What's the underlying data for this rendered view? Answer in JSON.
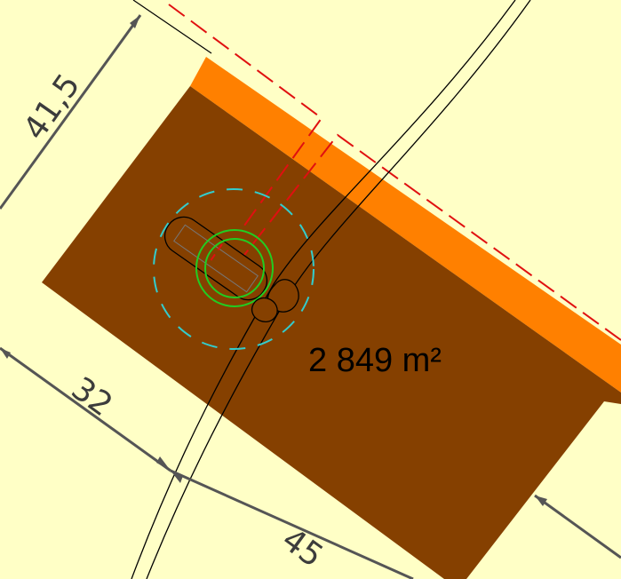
{
  "plot": {
    "area_label": "2 849 m²"
  },
  "dimensions": {
    "width_label": "41,5",
    "left_label": "32",
    "bottom_label": "45"
  },
  "colors": {
    "background": "#ffffc6",
    "plot_fill": "#854000",
    "border_strip": "#ff8000",
    "dimension_line": "#555555",
    "road_line": "#000000",
    "boundary_dashed": "#e01010",
    "turbine_ring": "#22cc22",
    "rotor_circle": "#33cccc",
    "foundation_outline": "#000000"
  }
}
